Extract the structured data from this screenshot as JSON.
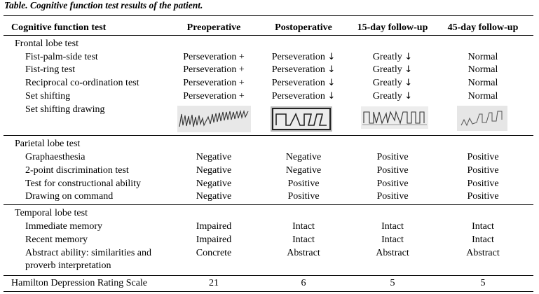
{
  "caption": "Table. Cognitive function test results of the patient.",
  "headers": {
    "test": "Cognitive function test",
    "pre": "Preoperative",
    "post": "Postoperative",
    "fu15": "15-day follow-up",
    "fu45": "45-day follow-up"
  },
  "frontal": {
    "title": "Frontal lobe test",
    "rows": [
      {
        "name": "Fist-palm-side test",
        "pre": "Perseveration +",
        "post": "Perseveration",
        "fu15": "Greatly",
        "fu45": "Normal"
      },
      {
        "name": "Fist-ring test",
        "pre": "Perseveration +",
        "post": "Perseveration",
        "fu15": "Greatly",
        "fu45": "Normal"
      },
      {
        "name": "Reciprocal co-ordination test",
        "pre": "Perseveration +",
        "post": "Perseveration",
        "fu15": "Greatly",
        "fu45": "Normal"
      },
      {
        "name": "Set shifting",
        "pre": "Perseveration +",
        "post": "Perseveration",
        "fu15": "Greatly",
        "fu45": "Normal"
      }
    ],
    "drawing_label": "Set shifting drawing",
    "down_arrow": "↓"
  },
  "parietal": {
    "title": "Parietal lobe test",
    "rows": [
      {
        "name": "Graphaesthesia",
        "pre": "Negative",
        "post": "Negative",
        "fu15": "Positive",
        "fu45": "Positive"
      },
      {
        "name": "2-point discrimination test",
        "pre": "Negative",
        "post": "Negative",
        "fu15": "Positive",
        "fu45": "Positive"
      },
      {
        "name": "Test for constructional ability",
        "pre": "Negative",
        "post": "Positive",
        "fu15": "Positive",
        "fu45": "Positive"
      },
      {
        "name": "Drawing on command",
        "pre": "Negative",
        "post": "Positive",
        "fu15": "Positive",
        "fu45": "Positive"
      }
    ]
  },
  "temporal": {
    "title": "Temporal lobe test",
    "rows": [
      {
        "name": "Immediate memory",
        "pre": "Impaired",
        "post": "Intact",
        "fu15": "Intact",
        "fu45": "Intact"
      },
      {
        "name": "Recent memory",
        "pre": "Impaired",
        "post": "Intact",
        "fu15": "Intact",
        "fu45": "Intact"
      }
    ],
    "abstract": {
      "name_line1": "Abstract ability: similarities and",
      "name_line2": "proverb interpretation",
      "pre": "Concrete",
      "post": "Abstract",
      "fu15": "Abstract",
      "fu45": "Abstract"
    }
  },
  "hamilton": {
    "name": "Hamilton Depression Rating Scale",
    "pre": "21",
    "post": "6",
    "fu15": "5",
    "fu45": "5"
  }
}
